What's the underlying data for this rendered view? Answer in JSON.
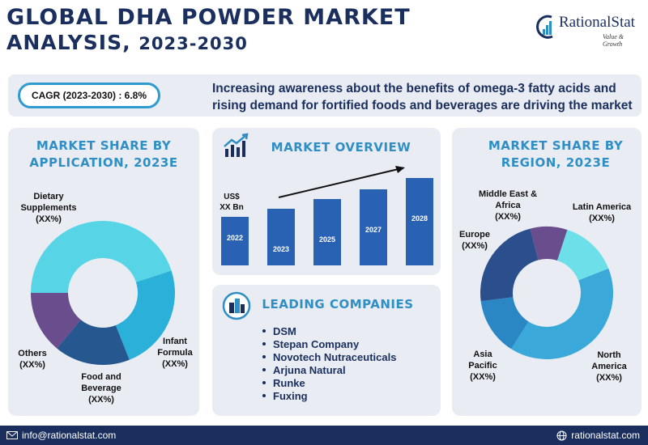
{
  "header": {
    "title_line1": "GLOBAL DHA POWDER MARKET",
    "title_line2_prefix": "ANALYSIS, ",
    "title_line2_years": "2023-2030",
    "logo_brand": "RationalStat",
    "logo_tagline": "Value & Growth"
  },
  "banner": {
    "cagr": "CAGR (2023-2030) : 6.8%",
    "text": "Increasing awareness about the benefits of omega-3 fatty acids and rising demand for fortified foods and beverages are driving the market"
  },
  "panels": {
    "application_title": "MARKET SHARE BY APPLICATION, 2023E",
    "overview_title": "MARKET OVERVIEW",
    "companies_title": "LEADING COMPANIES",
    "region_title": "MARKET SHARE BY REGION, 2023E"
  },
  "companies": [
    "DSM",
    "Stepan Company",
    "Novotech Nutraceuticals",
    "Arjuna Natural",
    "Runke",
    "Fuxing"
  ],
  "footer": {
    "email": "info@rationalstat.com",
    "website": "rationalstat.com"
  },
  "colors": {
    "navy": "#1b2f5e",
    "accent_blue": "#2f8fc4",
    "bar_blue": "#2a62b3",
    "panel_bg": "#e9edf3"
  },
  "chart_data": [
    {
      "type": "pie",
      "donut": true,
      "title": "MARKET SHARE BY APPLICATION, 2023E",
      "slices": [
        {
          "label": "Dietary\nSupplements\n(XX%)",
          "value": 45,
          "color": "#57d5e6"
        },
        {
          "label": "Infant\nFormula\n(XX%)",
          "value": 24,
          "color": "#2bb0d9"
        },
        {
          "label": "Food and\nBeverage\n(XX%)",
          "value": 17,
          "color": "#26578f"
        },
        {
          "label": "Others\n(XX%)",
          "value": 14,
          "color": "#6a4d8c"
        }
      ]
    },
    {
      "type": "bar",
      "title": "MARKET OVERVIEW",
      "value_label": "US$\nXX Bn",
      "categories": [
        "2022",
        "2023",
        "2025",
        "2027",
        "2028"
      ],
      "values": [
        60,
        70,
        82,
        94,
        108
      ],
      "trend_arrow": true
    },
    {
      "type": "pie",
      "donut": true,
      "title": "MARKET SHARE BY REGION, 2023E",
      "slices": [
        {
          "label": "Latin America\n(XX%)",
          "value": 14,
          "color": "#6ddfe9"
        },
        {
          "label": "North\nAmerica\n(XX%)",
          "value": 40,
          "color": "#3aa9d9"
        },
        {
          "label": "Asia\nPacific\n(XX%)",
          "value": 14,
          "color": "#2b86c4"
        },
        {
          "label": "Europe\n(XX%)",
          "value": 23,
          "color": "#2a4f8c"
        },
        {
          "label": "Middle East &\nAfrica\n(XX%)",
          "value": 9,
          "color": "#6a4d8c"
        }
      ]
    }
  ]
}
